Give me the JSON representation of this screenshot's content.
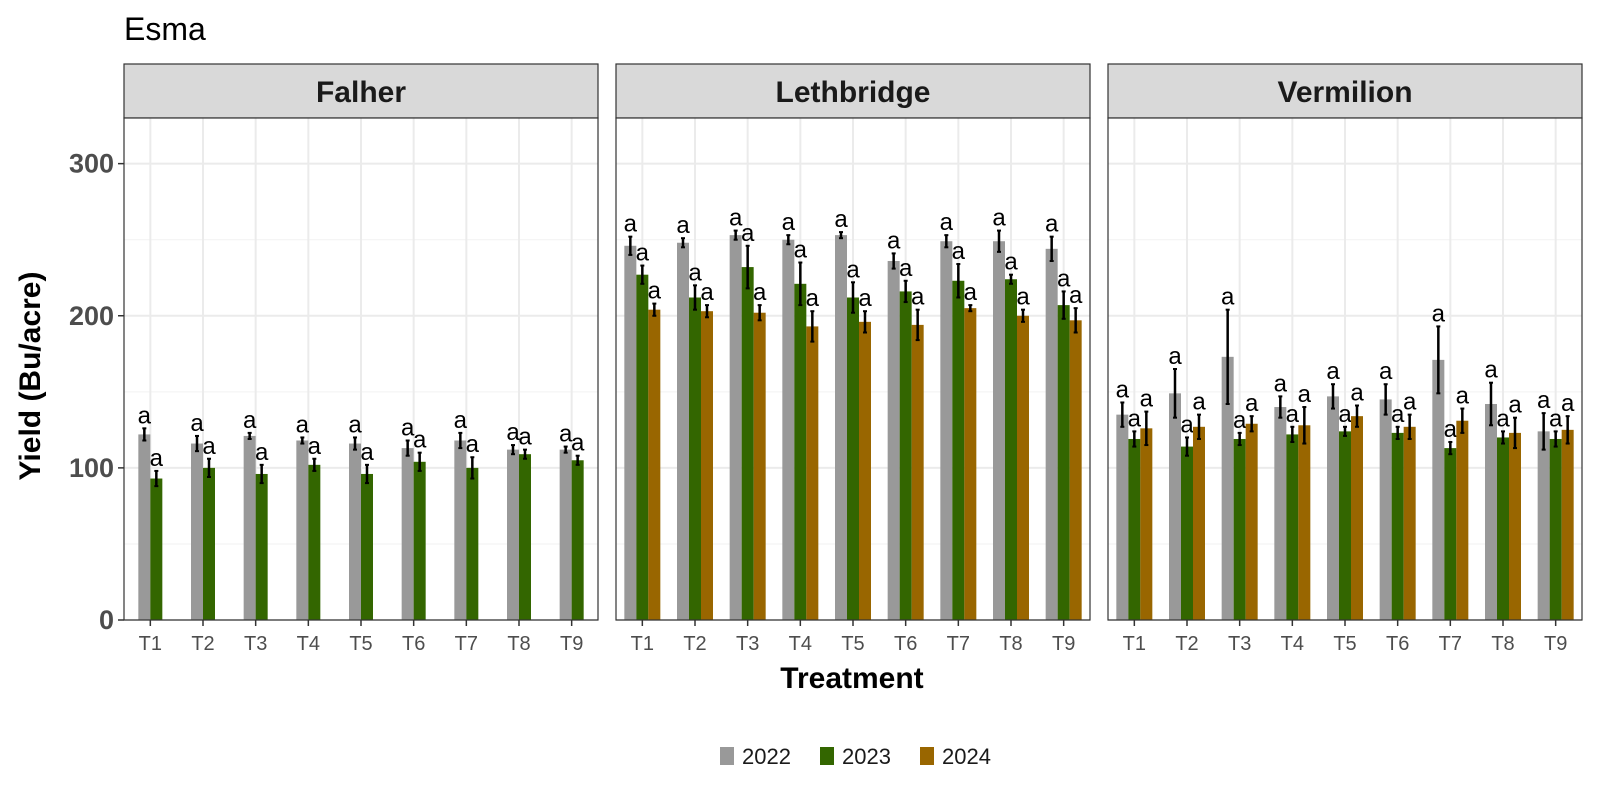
{
  "chart_data": {
    "type": "bar",
    "title": "Esma",
    "xlabel": "Treatment",
    "ylabel": "Yield (Bu/acre)",
    "ylim": [
      0,
      330
    ],
    "yticks": [
      0,
      100,
      200,
      300
    ],
    "grid": true,
    "legend_position": "bottom",
    "categories": [
      "T1",
      "T2",
      "T3",
      "T4",
      "T5",
      "T6",
      "T7",
      "T8",
      "T9"
    ],
    "series_colors": {
      "2022": "#999999",
      "2023": "#336600",
      "2024": "#996600"
    },
    "legend": [
      {
        "name": "2022",
        "color": "#999999"
      },
      {
        "name": "2023",
        "color": "#336600"
      },
      {
        "name": "2024",
        "color": "#996600"
      }
    ],
    "panels": [
      {
        "name": "Falher",
        "series": [
          {
            "name": "2022",
            "values": [
              122,
              116,
              121,
              118,
              116,
              113,
              118,
              112,
              112
            ],
            "errors": [
              4,
              5,
              2,
              2,
              4,
              5,
              5,
              3,
              2
            ],
            "letters": [
              "a",
              "a",
              "a",
              "a",
              "a",
              "a",
              "a",
              "a",
              "a"
            ]
          },
          {
            "name": "2023",
            "values": [
              93,
              100,
              96,
              102,
              96,
              104,
              100,
              109,
              105
            ],
            "errors": [
              5,
              6,
              6,
              4,
              6,
              6,
              7,
              3,
              3
            ],
            "letters": [
              "a",
              "a",
              "a",
              "a",
              "a",
              "a",
              "a",
              "a",
              "a"
            ]
          }
        ]
      },
      {
        "name": "Lethbridge",
        "series": [
          {
            "name": "2022",
            "values": [
              246,
              248,
              253,
              250,
              253,
              236,
              249,
              249,
              244
            ],
            "errors": [
              6,
              3,
              3,
              3,
              2,
              5,
              4,
              7,
              8
            ],
            "letters": [
              "a",
              "a",
              "a",
              "a",
              "a",
              "a",
              "a",
              "a",
              "a"
            ]
          },
          {
            "name": "2023",
            "values": [
              227,
              212,
              232,
              221,
              212,
              216,
              223,
              224,
              207
            ],
            "errors": [
              6,
              8,
              14,
              14,
              10,
              7,
              11,
              3,
              9
            ],
            "letters": [
              "a",
              "a",
              "a",
              "a",
              "a",
              "a",
              "a",
              "a",
              "a"
            ]
          },
          {
            "name": "2024",
            "values": [
              204,
              203,
              202,
              193,
              196,
              194,
              205,
              200,
              197
            ],
            "errors": [
              4,
              4,
              5,
              10,
              7,
              10,
              2,
              4,
              8
            ],
            "letters": [
              "a",
              "a",
              "a",
              "a",
              "a",
              "a",
              "a",
              "a",
              "a"
            ]
          }
        ]
      },
      {
        "name": "Vermilion",
        "series": [
          {
            "name": "2022",
            "values": [
              135,
              149,
              173,
              140,
              147,
              145,
              171,
              142,
              124
            ],
            "errors": [
              8,
              16,
              31,
              7,
              8,
              10,
              22,
              14,
              12
            ],
            "letters": [
              "a",
              "a",
              "a",
              "a",
              "a",
              "a",
              "a",
              "a",
              "a"
            ]
          },
          {
            "name": "2023",
            "values": [
              119,
              114,
              119,
              122,
              124,
              123,
              113,
              120,
              119
            ],
            "errors": [
              5,
              6,
              4,
              5,
              3,
              4,
              4,
              4,
              5
            ],
            "letters": [
              "a",
              "a",
              "a",
              "a",
              "a",
              "a",
              "a",
              "a",
              "a"
            ]
          },
          {
            "name": "2024",
            "values": [
              126,
              127,
              129,
              128,
              134,
              127,
              131,
              123,
              125
            ],
            "errors": [
              11,
              8,
              5,
              12,
              7,
              8,
              8,
              10,
              9
            ],
            "letters": [
              "a",
              "a",
              "a",
              "a",
              "a",
              "a",
              "a",
              "a",
              "a"
            ]
          }
        ]
      }
    ]
  }
}
